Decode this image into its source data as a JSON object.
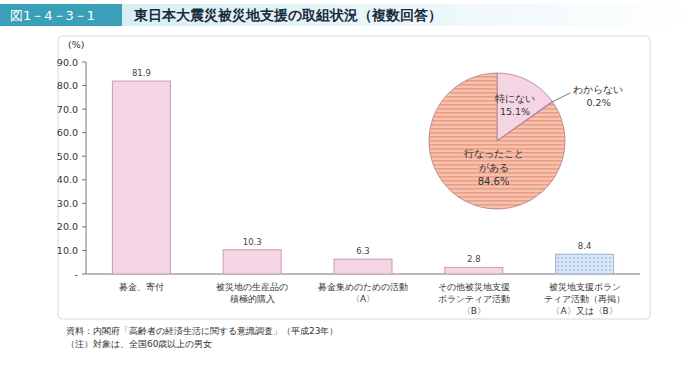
{
  "header": {
    "figure_number": "図1－4－3－1",
    "title": "東日本大震災被災地支援の取組状況（複数回答）"
  },
  "chart_data": [
    {
      "type": "bar",
      "y_label": "(%)",
      "categories": [
        "募金、寄付",
        "被災地の生産品の\n積極的購入",
        "募金集めのための活動\n〈A〉",
        "その他被災地支援\nボランティア活動\n〈B〉",
        "被災地支援ボラン\nティア活動（再掲）\n〈A〉又は〈B〉"
      ],
      "values": [
        81.9,
        10.3,
        6.3,
        2.8,
        8.4
      ],
      "colors": [
        "#f3d5e4",
        "#f3d5e4",
        "#f3d5e4",
        "#f3d5e4",
        "#d9e6f6"
      ],
      "ylim": [
        0,
        90
      ],
      "yticks": [
        {
          "value": 0,
          "label": "-"
        },
        {
          "value": 10,
          "label": "10.0"
        },
        {
          "value": 20,
          "label": "20.0"
        },
        {
          "value": 30,
          "label": "30.0"
        },
        {
          "value": 40,
          "label": "40.0"
        },
        {
          "value": 50,
          "label": "50.0"
        },
        {
          "value": 60,
          "label": "60.0"
        },
        {
          "value": 70,
          "label": "70.0"
        },
        {
          "value": 80,
          "label": "80.0"
        },
        {
          "value": 90,
          "label": "90.0"
        }
      ],
      "grid": false,
      "data_labels": true
    },
    {
      "type": "pie",
      "categories": [
        "特にない",
        "わからない",
        "行なったこと\nがある"
      ],
      "values": [
        15.1,
        0.2,
        84.6
      ],
      "value_labels": [
        "15.1%",
        "0.2%",
        "84.6%"
      ],
      "colors": [
        "#f3d5e4",
        "#ffffff",
        "#f6c2b0"
      ],
      "data_labels": true
    }
  ],
  "notes": [
    "資料：内閣府「高齢者の経済生活に関する意識調査」（平成23年）",
    "（注）対象は、全国60歳以上の男女"
  ]
}
